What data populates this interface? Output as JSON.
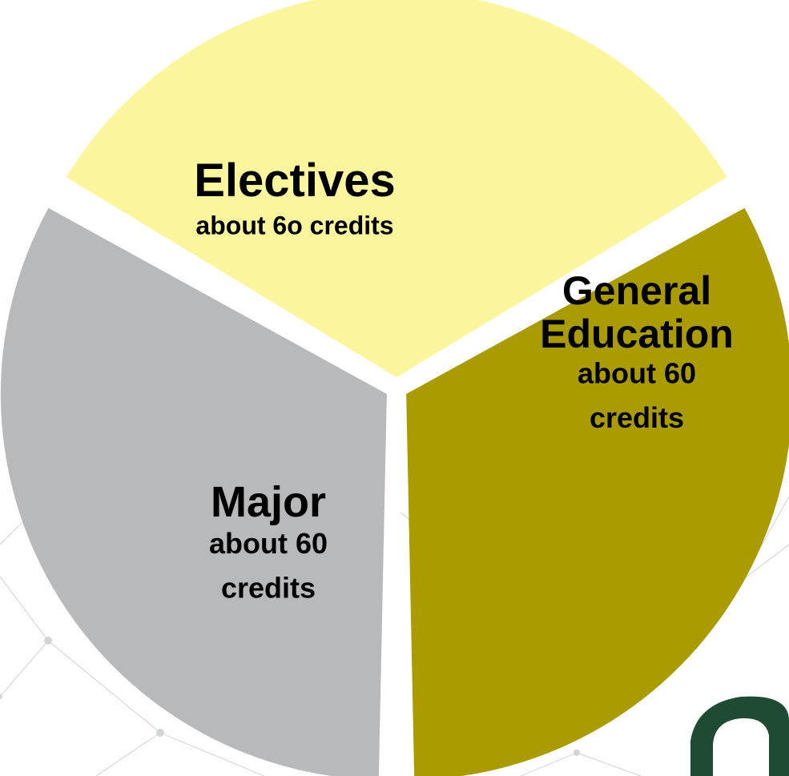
{
  "chart_data": {
    "type": "pie",
    "title": "",
    "slices": [
      {
        "name": "Electives",
        "value": 60,
        "sub_label": "about 6o credits",
        "color": "#fbf69e"
      },
      {
        "name": "General Education",
        "name_lines": [
          "General",
          "Education"
        ],
        "value": 60,
        "sub_label": "about 60 credits",
        "sub_lines": [
          "about 60",
          "credits"
        ],
        "color": "#aa9c00"
      },
      {
        "name": "Major",
        "value": 60,
        "sub_label": "about 60 credits",
        "sub_lines": [
          "about 60",
          "credits"
        ],
        "color": "#b8b9bb"
      }
    ],
    "legend": "none",
    "exploded": true
  },
  "decoration": {
    "background": "#ffffff",
    "network_color": "#d6d9dc",
    "logo_color": "#1f4a33",
    "logo_icon": "university-logo-fragment"
  }
}
